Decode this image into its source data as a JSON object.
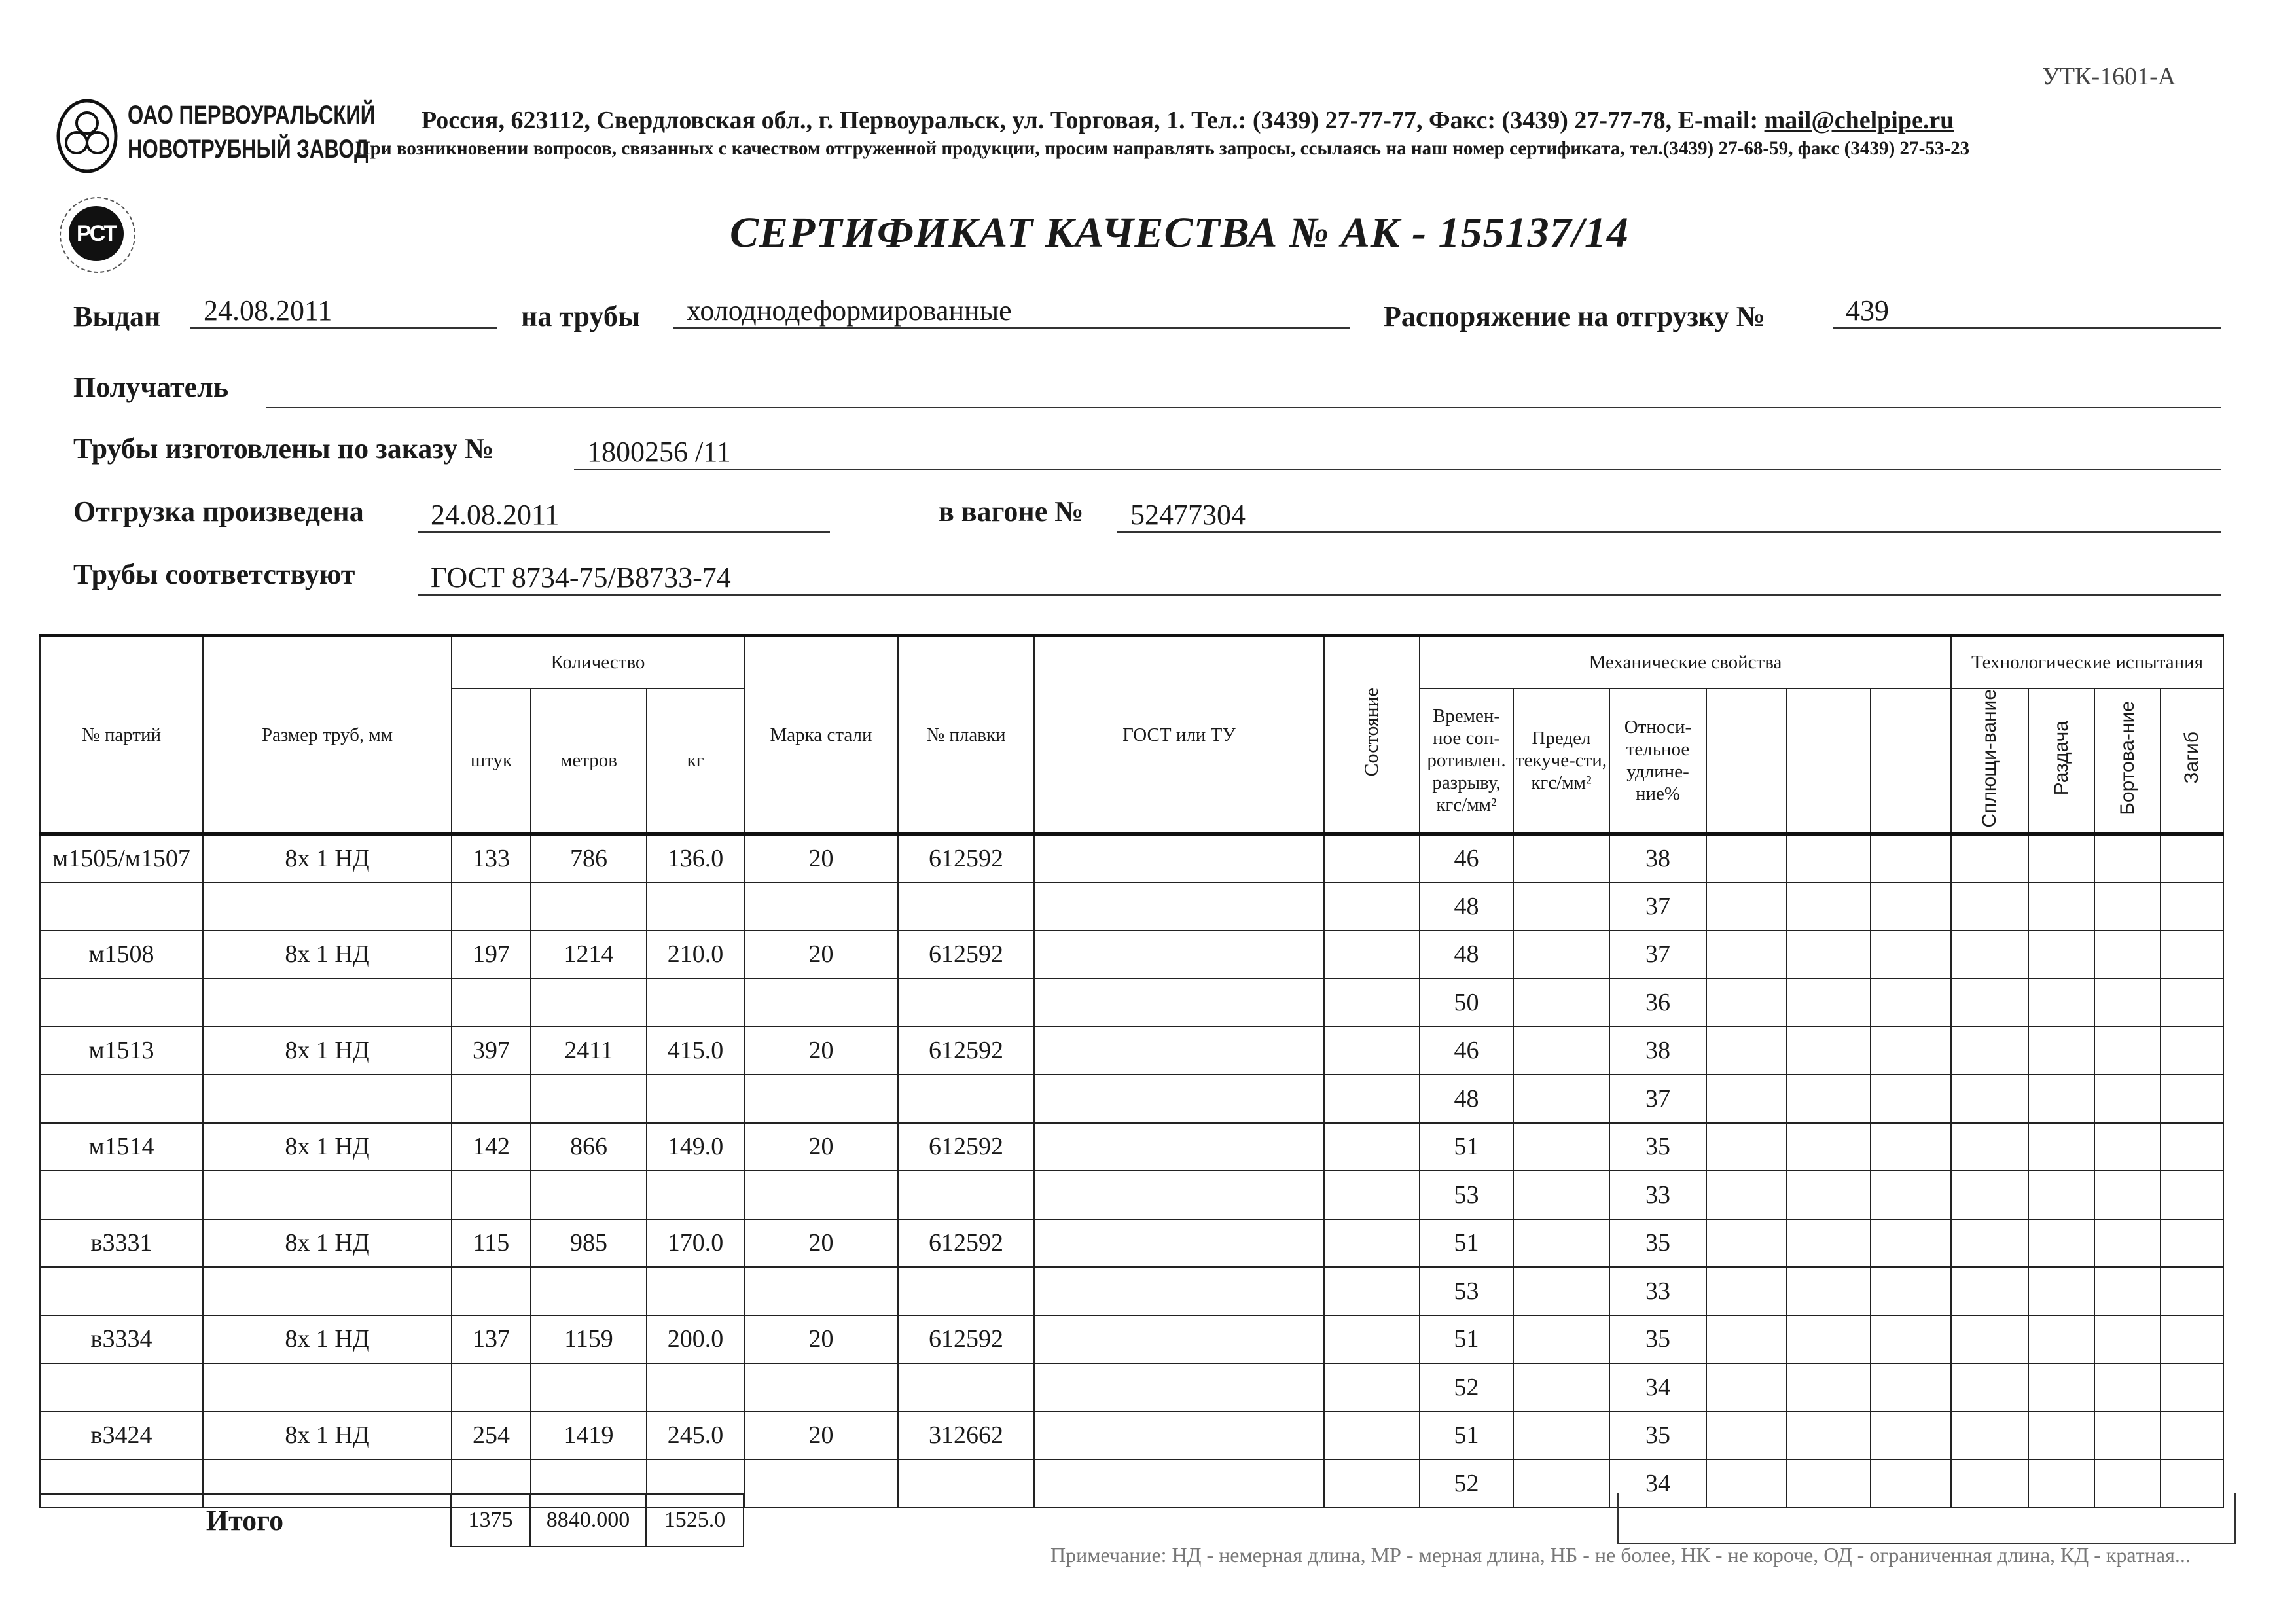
{
  "form_code": "УТК-1601-А",
  "company": {
    "logo_line1": "ОАО ПЕРВОУРАЛЬСКИЙ",
    "logo_line2": "НОВОТРУБНЫЙ ЗАВОД",
    "address": "Россия, 623112, Свердловская обл., г. Первоуральск, ул. Торговая, 1. Тел.: (3439) 27-77-77, Факс: (3439) 27-77-78,  E-mail: ",
    "email": "mail@chelpipe.ru",
    "contact_note": "При возникновении вопросов, связанных с качеством отгруженной продукции, просим направлять запросы, ссылаясь на наш номер сертификата, тел.(3439) 27-68-59, факс (3439) 27-53-23",
    "cert_mark": "РСТ"
  },
  "title": "СЕРТИФИКАТ КАЧЕСТВА   №  АК -  155137/14",
  "fields": {
    "issued_label": "Выдан",
    "issued_value": "24.08.2011",
    "pipes_label": "на трубы",
    "pipes_value": "холоднодеформированные",
    "order_ship_label": "Распоряжение на отгрузку №",
    "order_ship_value": "439",
    "recipient_label": "Получатель",
    "recipient_value": "",
    "made_label": "Трубы изготовлены по заказу №",
    "made_value": "1800256   /11",
    "shipped_label": "Отгрузка произведена",
    "shipped_value": "24.08.2011",
    "wagon_label": "в вагоне №",
    "wagon_value": "52477304",
    "conform_label": "Трубы соответствуют",
    "conform_value": "ГОСТ 8734-75/В8733-74"
  },
  "table": {
    "headers": {
      "party": "№ партий",
      "size": "Размер труб, мм",
      "quantity": "Количество",
      "pcs": "штук",
      "meters": "метров",
      "kg": "кг",
      "grade": "Марка стали",
      "heat": "№ плавки",
      "gost": "ГОСТ или ТУ",
      "state": "Состояние",
      "mech": "Механические свойства",
      "tensile": "Времен-ное соп-ротивлен. разрыву, кгс/мм²",
      "yield": "Предел текуче-сти, кгс/мм²",
      "elong": "Относи-тельное удлине-ние%",
      "tech": "Технологические испытания",
      "flatten": "Сплющи-вание",
      "expand": "Раздача",
      "flange": "Бортова-ние",
      "bend": "Загиб"
    },
    "parties": [
      {
        "party": "м1505/м1507",
        "size": "8х 1 НД",
        "pcs": "133",
        "meters": "786",
        "kg": "136.0",
        "grade": "20",
        "heat": "612592",
        "tests": [
          [
            "46",
            "38"
          ],
          [
            "48",
            "37"
          ]
        ]
      },
      {
        "party": "м1508",
        "size": "8х 1 НД",
        "pcs": "197",
        "meters": "1214",
        "kg": "210.0",
        "grade": "20",
        "heat": "612592",
        "tests": [
          [
            "48",
            "37"
          ],
          [
            "50",
            "36"
          ]
        ]
      },
      {
        "party": "м1513",
        "size": "8х 1 НД",
        "pcs": "397",
        "meters": "2411",
        "kg": "415.0",
        "grade": "20",
        "heat": "612592",
        "tests": [
          [
            "46",
            "38"
          ],
          [
            "48",
            "37"
          ]
        ]
      },
      {
        "party": "м1514",
        "size": "8х 1 НД",
        "pcs": "142",
        "meters": "866",
        "kg": "149.0",
        "grade": "20",
        "heat": "612592",
        "tests": [
          [
            "51",
            "35"
          ],
          [
            "53",
            "33"
          ]
        ]
      },
      {
        "party": "в3331",
        "size": "8х 1 НД",
        "pcs": "115",
        "meters": "985",
        "kg": "170.0",
        "grade": "20",
        "heat": "612592",
        "tests": [
          [
            "51",
            "35"
          ],
          [
            "53",
            "33"
          ]
        ]
      },
      {
        "party": "в3334",
        "size": "8х 1 НД",
        "pcs": "137",
        "meters": "1159",
        "kg": "200.0",
        "grade": "20",
        "heat": "612592",
        "tests": [
          [
            "51",
            "35"
          ],
          [
            "52",
            "34"
          ]
        ]
      },
      {
        "party": "в3424",
        "size": "8х 1 НД",
        "pcs": "254",
        "meters": "1419",
        "kg": "245.0",
        "grade": "20",
        "heat": "312662",
        "tests": [
          [
            "51",
            "35"
          ],
          [
            "52",
            "34"
          ]
        ]
      }
    ],
    "total": {
      "label": "Итого",
      "pcs": "1375",
      "meters": "8840.000",
      "kg": "1525.0"
    }
  },
  "note": "Примечание: НД - немерная длина, МР - мерная длина, НБ - не более, НК - не короче, ОД - ограниченная длина, КД - кратная..."
}
